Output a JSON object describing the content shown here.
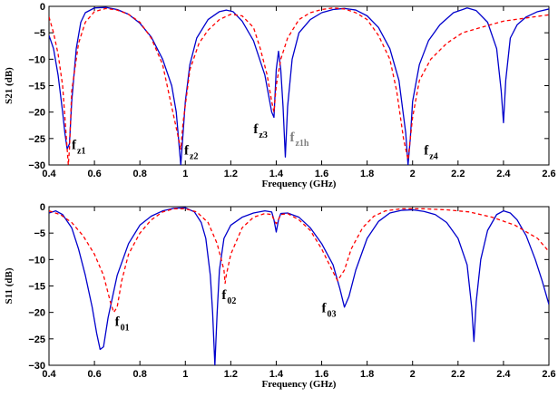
{
  "chart_data": [
    {
      "type": "line",
      "title": "",
      "xlabel": "Frequency (GHz)",
      "ylabel": "S21 (dB)",
      "xlim": [
        0.4,
        2.6
      ],
      "ylim": [
        -30,
        0
      ],
      "xticks": [
        0.4,
        0.6,
        0.8,
        1,
        1.2,
        1.4,
        1.6,
        1.8,
        2,
        2.2,
        2.4,
        2.6
      ],
      "xtick_labels": [
        "0.4",
        "0.6",
        "0.8",
        "1",
        "1.2",
        "1.4",
        "1.6",
        "1.8",
        "2",
        "2.2",
        "2.4",
        "2.6"
      ],
      "yticks": [
        -30,
        -25,
        -20,
        -15,
        -10,
        -5,
        0
      ],
      "ytick_labels": [
        "−30",
        "−25",
        "−20",
        "−15",
        "−10",
        "−5",
        "0"
      ],
      "grid": false,
      "legend": "none",
      "series": [
        {
          "style": "solid",
          "color": "#0000cc",
          "points": [
            [
              0.4,
              -5.5
            ],
            [
              0.42,
              -8
            ],
            [
              0.44,
              -13
            ],
            [
              0.46,
              -20
            ],
            [
              0.47,
              -24
            ],
            [
              0.48,
              -27
            ],
            [
              0.49,
              -26
            ],
            [
              0.5,
              -18
            ],
            [
              0.52,
              -8
            ],
            [
              0.54,
              -3
            ],
            [
              0.56,
              -1.2
            ],
            [
              0.6,
              -0.3
            ],
            [
              0.65,
              -0.2
            ],
            [
              0.7,
              -0.6
            ],
            [
              0.75,
              -1.5
            ],
            [
              0.8,
              -3.2
            ],
            [
              0.85,
              -5.8
            ],
            [
              0.9,
              -10
            ],
            [
              0.94,
              -15
            ],
            [
              0.96,
              -20
            ],
            [
              0.98,
              -30
            ],
            [
              1.0,
              -18
            ],
            [
              1.02,
              -11
            ],
            [
              1.05,
              -6
            ],
            [
              1.1,
              -2.5
            ],
            [
              1.15,
              -1
            ],
            [
              1.18,
              -0.7
            ],
            [
              1.21,
              -1
            ],
            [
              1.25,
              -2.8
            ],
            [
              1.3,
              -6.5
            ],
            [
              1.35,
              -13
            ],
            [
              1.38,
              -20
            ],
            [
              1.39,
              -21
            ],
            [
              1.4,
              -12
            ],
            [
              1.41,
              -8.5
            ],
            [
              1.42,
              -12
            ],
            [
              1.43,
              -19
            ],
            [
              1.44,
              -28.5
            ],
            [
              1.45,
              -19
            ],
            [
              1.47,
              -10
            ],
            [
              1.5,
              -5
            ],
            [
              1.55,
              -2.5
            ],
            [
              1.6,
              -1.2
            ],
            [
              1.65,
              -0.6
            ],
            [
              1.7,
              -0.4
            ],
            [
              1.75,
              -0.7
            ],
            [
              1.8,
              -1.8
            ],
            [
              1.85,
              -4
            ],
            [
              1.9,
              -8
            ],
            [
              1.94,
              -14
            ],
            [
              1.97,
              -24
            ],
            [
              1.98,
              -30
            ],
            [
              1.99,
              -25
            ],
            [
              2.0,
              -18
            ],
            [
              2.03,
              -11
            ],
            [
              2.07,
              -6.5
            ],
            [
              2.12,
              -3.5
            ],
            [
              2.18,
              -1.2
            ],
            [
              2.24,
              -0.3
            ],
            [
              2.28,
              -0.8
            ],
            [
              2.33,
              -3
            ],
            [
              2.37,
              -8
            ],
            [
              2.39,
              -16
            ],
            [
              2.4,
              -22
            ],
            [
              2.41,
              -14
            ],
            [
              2.43,
              -6
            ],
            [
              2.46,
              -3.5
            ],
            [
              2.5,
              -2
            ],
            [
              2.55,
              -1
            ],
            [
              2.6,
              -0.5
            ]
          ]
        },
        {
          "style": "dashed",
          "color": "#ff0000",
          "points": [
            [
              0.4,
              -2
            ],
            [
              0.42,
              -5
            ],
            [
              0.44,
              -9
            ],
            [
              0.46,
              -15
            ],
            [
              0.475,
              -24
            ],
            [
              0.485,
              -30
            ],
            [
              0.49,
              -27
            ],
            [
              0.5,
              -16
            ],
            [
              0.53,
              -7
            ],
            [
              0.56,
              -3
            ],
            [
              0.6,
              -1
            ],
            [
              0.65,
              -0.4
            ],
            [
              0.7,
              -0.7
            ],
            [
              0.75,
              -1.5
            ],
            [
              0.8,
              -3
            ],
            [
              0.85,
              -6
            ],
            [
              0.9,
              -11
            ],
            [
              0.94,
              -19
            ],
            [
              0.97,
              -25
            ],
            [
              0.98,
              -27
            ],
            [
              0.99,
              -22
            ],
            [
              1.02,
              -12
            ],
            [
              1.06,
              -7
            ],
            [
              1.1,
              -4.5
            ],
            [
              1.15,
              -2.5
            ],
            [
              1.2,
              -1.5
            ],
            [
              1.25,
              -1.8
            ],
            [
              1.3,
              -4
            ],
            [
              1.33,
              -8
            ],
            [
              1.36,
              -13
            ],
            [
              1.38,
              -18
            ],
            [
              1.39,
              -20
            ],
            [
              1.4,
              -15
            ],
            [
              1.42,
              -10
            ],
            [
              1.45,
              -6
            ],
            [
              1.5,
              -2.5
            ],
            [
              1.55,
              -1.2
            ],
            [
              1.6,
              -0.6
            ],
            [
              1.65,
              -0.3
            ],
            [
              1.7,
              -0.5
            ],
            [
              1.75,
              -1.2
            ],
            [
              1.8,
              -2.5
            ],
            [
              1.85,
              -5.5
            ],
            [
              1.9,
              -10
            ],
            [
              1.93,
              -16
            ],
            [
              1.96,
              -25
            ],
            [
              1.98,
              -29
            ],
            [
              2.0,
              -21
            ],
            [
              2.03,
              -14
            ],
            [
              2.08,
              -10
            ],
            [
              2.15,
              -7
            ],
            [
              2.22,
              -5
            ],
            [
              2.3,
              -4
            ],
            [
              2.4,
              -2.8
            ],
            [
              2.5,
              -2.2
            ],
            [
              2.6,
              -1.6
            ]
          ]
        }
      ],
      "annotations": [
        {
          "main": "f",
          "sub": "z1",
          "x": 0.5,
          "y": -27,
          "color": "#000000"
        },
        {
          "main": "f",
          "sub": "z2",
          "x": 0.995,
          "y": -28,
          "color": "#000000"
        },
        {
          "main": "f",
          "sub": "z3",
          "x": 1.3,
          "y": -24,
          "color": "#000000"
        },
        {
          "main": "f",
          "sub": "z1h",
          "x": 1.46,
          "y": -25.5,
          "color": "#808080"
        },
        {
          "main": "f",
          "sub": "z4",
          "x": 2.05,
          "y": -28,
          "color": "#000000"
        }
      ]
    },
    {
      "type": "line",
      "title": "",
      "xlabel": "Frequency (GHz)",
      "ylabel": "S11 (dB)",
      "xlim": [
        0.4,
        2.6
      ],
      "ylim": [
        -30,
        0
      ],
      "xticks": [
        0.4,
        0.6,
        0.8,
        1,
        1.2,
        1.4,
        1.6,
        1.8,
        2,
        2.2,
        2.4,
        2.6
      ],
      "xtick_labels": [
        "0.4",
        "0.6",
        "0.8",
        "1",
        "1.2",
        "1.4",
        "1.6",
        "1.8",
        "2",
        "2.2",
        "2.4",
        "2.6"
      ],
      "yticks": [
        -30,
        -25,
        -20,
        -15,
        -10,
        -5,
        0
      ],
      "ytick_labels": [
        "−30",
        "−25",
        "−20",
        "−15",
        "−10",
        "−5",
        "0"
      ],
      "grid": false,
      "legend": "none",
      "series": [
        {
          "style": "solid",
          "color": "#0000cc",
          "points": [
            [
              0.4,
              -1.2
            ],
            [
              0.43,
              -0.8
            ],
            [
              0.46,
              -1.5
            ],
            [
              0.5,
              -4
            ],
            [
              0.53,
              -8
            ],
            [
              0.56,
              -13
            ],
            [
              0.59,
              -19
            ],
            [
              0.61,
              -24
            ],
            [
              0.625,
              -27
            ],
            [
              0.64,
              -26.5
            ],
            [
              0.66,
              -21
            ],
            [
              0.7,
              -13
            ],
            [
              0.75,
              -7
            ],
            [
              0.8,
              -3.5
            ],
            [
              0.85,
              -1.8
            ],
            [
              0.9,
              -0.8
            ],
            [
              0.95,
              -0.3
            ],
            [
              1.0,
              -0.2
            ],
            [
              1.04,
              -1
            ],
            [
              1.07,
              -3
            ],
            [
              1.09,
              -6
            ],
            [
              1.11,
              -13
            ],
            [
              1.12,
              -20
            ],
            [
              1.13,
              -30
            ],
            [
              1.14,
              -20
            ],
            [
              1.15,
              -12
            ],
            [
              1.17,
              -6
            ],
            [
              1.2,
              -3.5
            ],
            [
              1.25,
              -2
            ],
            [
              1.3,
              -1.2
            ],
            [
              1.35,
              -0.8
            ],
            [
              1.38,
              -1
            ],
            [
              1.39,
              -2.5
            ],
            [
              1.4,
              -4.8
            ],
            [
              1.41,
              -2.5
            ],
            [
              1.42,
              -1.3
            ],
            [
              1.45,
              -1.2
            ],
            [
              1.5,
              -2
            ],
            [
              1.55,
              -4
            ],
            [
              1.6,
              -7
            ],
            [
              1.65,
              -11
            ],
            [
              1.68,
              -15.5
            ],
            [
              1.7,
              -19
            ],
            [
              1.72,
              -17
            ],
            [
              1.75,
              -12
            ],
            [
              1.8,
              -6
            ],
            [
              1.85,
              -2.8
            ],
            [
              1.9,
              -1.2
            ],
            [
              1.95,
              -0.7
            ],
            [
              2.0,
              -0.6
            ],
            [
              2.05,
              -0.9
            ],
            [
              2.1,
              -1.5
            ],
            [
              2.15,
              -3
            ],
            [
              2.2,
              -6
            ],
            [
              2.24,
              -11
            ],
            [
              2.26,
              -19
            ],
            [
              2.27,
              -25.5
            ],
            [
              2.28,
              -18
            ],
            [
              2.3,
              -10
            ],
            [
              2.33,
              -4.5
            ],
            [
              2.37,
              -1.5
            ],
            [
              2.4,
              -0.8
            ],
            [
              2.43,
              -1.2
            ],
            [
              2.46,
              -2.5
            ],
            [
              2.5,
              -5.5
            ],
            [
              2.54,
              -10
            ],
            [
              2.57,
              -14
            ],
            [
              2.6,
              -18.5
            ]
          ]
        },
        {
          "style": "dashed",
          "color": "#ff0000",
          "points": [
            [
              0.4,
              -0.8
            ],
            [
              0.45,
              -1.5
            ],
            [
              0.5,
              -3
            ],
            [
              0.55,
              -5.5
            ],
            [
              0.6,
              -9
            ],
            [
              0.64,
              -13
            ],
            [
              0.67,
              -18
            ],
            [
              0.685,
              -20
            ],
            [
              0.7,
              -19
            ],
            [
              0.72,
              -14
            ],
            [
              0.75,
              -9
            ],
            [
              0.8,
              -5
            ],
            [
              0.85,
              -2.5
            ],
            [
              0.9,
              -1
            ],
            [
              0.95,
              -0.4
            ],
            [
              1.0,
              -0.4
            ],
            [
              1.05,
              -1
            ],
            [
              1.1,
              -3
            ],
            [
              1.14,
              -7
            ],
            [
              1.17,
              -12
            ],
            [
              1.175,
              -14.5
            ],
            [
              1.18,
              -13
            ],
            [
              1.2,
              -9
            ],
            [
              1.25,
              -4
            ],
            [
              1.3,
              -2
            ],
            [
              1.35,
              -1.3
            ],
            [
              1.38,
              -1.5
            ],
            [
              1.39,
              -2.5
            ],
            [
              1.4,
              -3.2
            ],
            [
              1.41,
              -2.4
            ],
            [
              1.42,
              -1.5
            ],
            [
              1.45,
              -1.3
            ],
            [
              1.5,
              -2.5
            ],
            [
              1.55,
              -4.5
            ],
            [
              1.6,
              -8
            ],
            [
              1.64,
              -11.5
            ],
            [
              1.67,
              -14
            ],
            [
              1.7,
              -12
            ],
            [
              1.73,
              -8
            ],
            [
              1.78,
              -4
            ],
            [
              1.83,
              -1.8
            ],
            [
              1.88,
              -0.8
            ],
            [
              1.95,
              -0.4
            ],
            [
              2.05,
              -0.4
            ],
            [
              2.15,
              -0.6
            ],
            [
              2.25,
              -1
            ],
            [
              2.35,
              -2
            ],
            [
              2.45,
              -3.5
            ],
            [
              2.55,
              -6
            ],
            [
              2.6,
              -8.5
            ]
          ]
        }
      ],
      "annotations": [
        {
          "main": "f",
          "sub": "01",
          "x": 0.69,
          "y": -22.5,
          "color": "#000000"
        },
        {
          "main": "f",
          "sub": "02",
          "x": 1.16,
          "y": -17.5,
          "color": "#000000"
        },
        {
          "main": "f",
          "sub": "03",
          "x": 1.6,
          "y": -20,
          "color": "#000000"
        }
      ]
    }
  ]
}
